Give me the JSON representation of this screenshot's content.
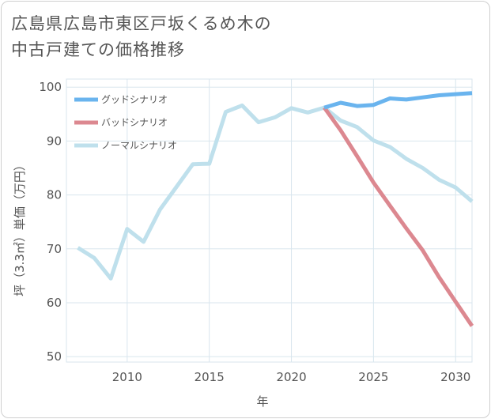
{
  "title": {
    "line1": "広島県広島市東区戸坂くるめ木の",
    "line2": "中古戸建ての価格推移"
  },
  "chart_data": {
    "type": "line",
    "xlabel": "年",
    "ylabel": "坪（3.3㎡）単価（万円）",
    "xlim": [
      2006.3,
      2031
    ],
    "ylim": [
      49,
      101.5
    ],
    "x_ticks": [
      2010,
      2015,
      2020,
      2025,
      2030
    ],
    "y_ticks": [
      50,
      60,
      70,
      80,
      90,
      100
    ],
    "grid": true,
    "legend_position": "top-left",
    "series": [
      {
        "name": "グッドシナリオ",
        "color": "#6ab4ee",
        "x": [
          2022,
          2023,
          2024,
          2025,
          2026,
          2027,
          2028,
          2029,
          2030,
          2031
        ],
        "y": [
          96.2,
          97.1,
          96.5,
          96.7,
          97.9,
          97.7,
          98.1,
          98.5,
          98.7,
          98.9
        ]
      },
      {
        "name": "バッドシナリオ",
        "color": "#dc8890",
        "x": [
          2022,
          2023,
          2024,
          2025,
          2026,
          2027,
          2028,
          2029,
          2030,
          2031
        ],
        "y": [
          96.2,
          92.0,
          87.2,
          82.3,
          78.0,
          73.8,
          69.7,
          64.7,
          60.2,
          55.7
        ]
      },
      {
        "name": "ノーマルシナリオ",
        "color": "#bfe0ec",
        "x": [
          2007,
          2008,
          2009,
          2010,
          2011,
          2012,
          2013,
          2014,
          2015,
          2016,
          2017,
          2018,
          2019,
          2020,
          2021,
          2022,
          2023,
          2024,
          2025,
          2026,
          2027,
          2028,
          2029,
          2030,
          2031
        ],
        "y": [
          70.2,
          68.3,
          64.5,
          73.7,
          71.3,
          77.3,
          81.5,
          85.7,
          85.8,
          95.4,
          96.6,
          93.5,
          94.4,
          96.1,
          95.3,
          96.2,
          93.8,
          92.6,
          90.1,
          88.9,
          86.7,
          85.0,
          82.8,
          81.4,
          78.8
        ]
      }
    ]
  }
}
